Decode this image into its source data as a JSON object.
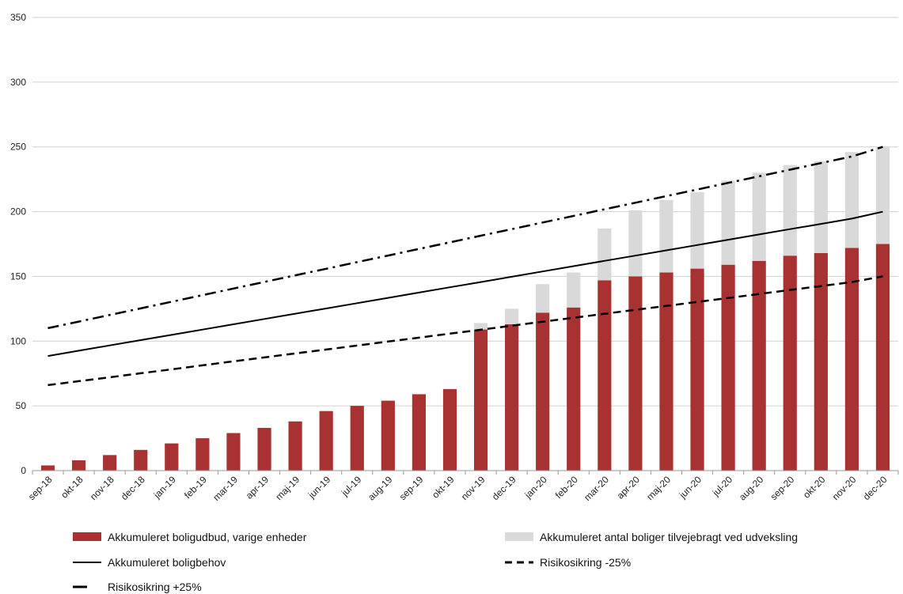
{
  "chart_data": {
    "type": "bar",
    "categories": [
      "sep-18",
      "okt-18",
      "nov-18",
      "dec-18",
      "jan-19",
      "feb-19",
      "mar-19",
      "apr-19",
      "maj-19",
      "jun-19",
      "jul-19",
      "aug-19",
      "sep-19",
      "okt-19",
      "nov-19",
      "dec-19",
      "jan-20",
      "feb-20",
      "mar-20",
      "apr-20",
      "maj-20",
      "jun-20",
      "jul-20",
      "aug-20",
      "sep-20",
      "okt-20",
      "nov-20",
      "dec-20"
    ],
    "ylim": [
      0,
      350
    ],
    "yticks": [
      0,
      50,
      100,
      150,
      200,
      250,
      300,
      350
    ],
    "grid": true,
    "legend_position": "bottom",
    "series": [
      {
        "name": "Akkumuleret boligudbud, varige enheder",
        "kind": "bar",
        "stack": "a",
        "color": "#a83232",
        "values": [
          4,
          8,
          12,
          16,
          21,
          25,
          29,
          33,
          38,
          46,
          50,
          54,
          59,
          63,
          109,
          113,
          122,
          126,
          147,
          150,
          153,
          156,
          159,
          162,
          166,
          168,
          172,
          175
        ]
      },
      {
        "name": "Akkumuleret antal boliger tilvejebragt ved udveksling",
        "kind": "bar",
        "stack": "a",
        "color": "#d9d9d9",
        "values": [
          0,
          0,
          0,
          0,
          0,
          0,
          0,
          0,
          0,
          0,
          0,
          0,
          0,
          0,
          5,
          12,
          22,
          27,
          40,
          51,
          56,
          59,
          65,
          68,
          70,
          71,
          74,
          75
        ]
      },
      {
        "name": "Akkumuleret boligbehov",
        "kind": "line",
        "dash": "solid",
        "color": "#000000",
        "values": [
          88.5,
          92.6,
          96.7,
          100.8,
          104.8,
          108.9,
          113.0,
          117.1,
          121.2,
          125.2,
          129.3,
          133.4,
          137.5,
          141.6,
          145.6,
          149.7,
          153.8,
          157.9,
          162.0,
          166.0,
          170.1,
          174.2,
          178.3,
          182.4,
          186.5,
          190.5,
          194.6,
          200
        ]
      },
      {
        "name": "Risikosikring -25%",
        "kind": "line",
        "dash": "dashed",
        "color": "#000000",
        "values": [
          66,
          69.1,
          72.1,
          75.2,
          78.2,
          81.3,
          84.4,
          87.4,
          90.5,
          93.5,
          96.6,
          99.7,
          102.7,
          105.8,
          108.8,
          111.9,
          115.0,
          118.0,
          121.1,
          124.2,
          127.2,
          130.3,
          133.3,
          136.4,
          139.5,
          142.5,
          145.6,
          150
        ]
      },
      {
        "name": "Risikosikring +25%",
        "kind": "line",
        "dash": "dashdot",
        "color": "#000000",
        "values": [
          110,
          115.1,
          120.2,
          125.3,
          130.4,
          135.5,
          140.6,
          145.7,
          150.8,
          155.9,
          161.0,
          166.1,
          171.2,
          176.3,
          181.4,
          186.5,
          191.6,
          196.7,
          201.8,
          206.9,
          212.0,
          217.1,
          222.2,
          227.3,
          232.4,
          237.5,
          242.6,
          250
        ]
      }
    ]
  }
}
